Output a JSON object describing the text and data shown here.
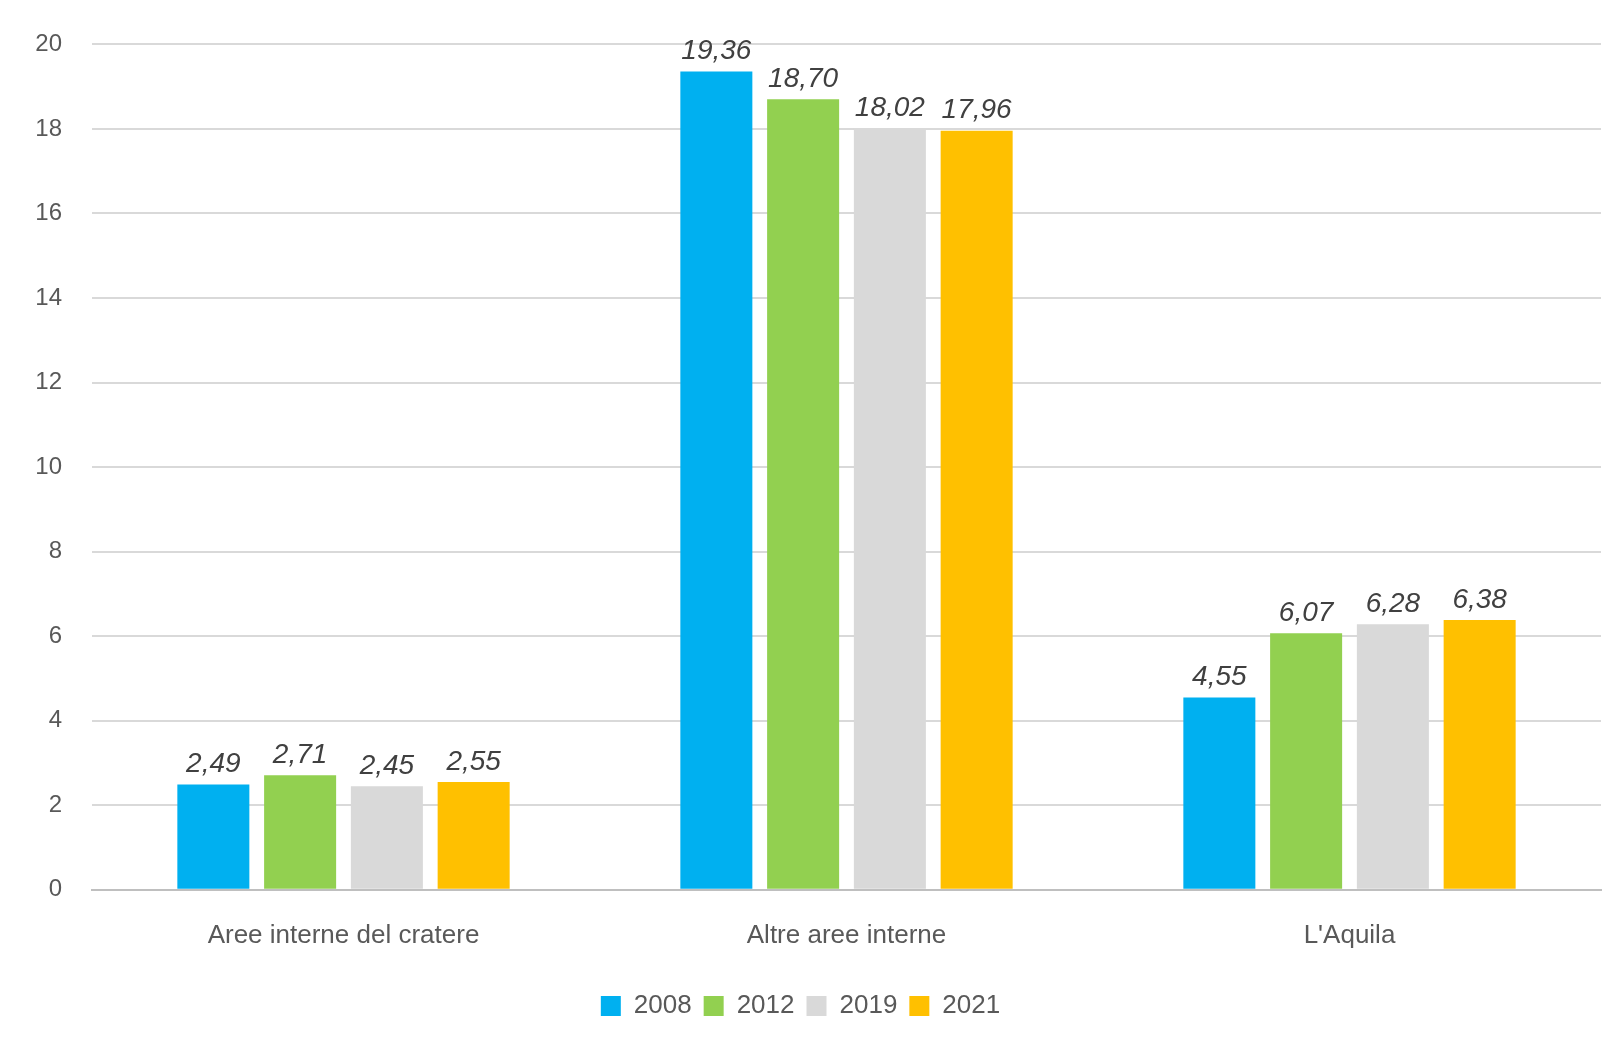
{
  "chart_data": {
    "type": "bar",
    "categories": [
      "Aree interne del cratere",
      "Altre aree interne",
      "L'Aquila"
    ],
    "series": [
      {
        "name": "2008",
        "color": "#00b0f0",
        "values": [
          2.49,
          19.36,
          4.55
        ],
        "value_labels": [
          "2,49",
          "19,36",
          "4,55"
        ]
      },
      {
        "name": "2012",
        "color": "#92d050",
        "values": [
          2.71,
          18.7,
          6.07
        ],
        "value_labels": [
          "2,71",
          "18,70",
          "6,07"
        ]
      },
      {
        "name": "2019",
        "color": "#d9d9d9",
        "values": [
          2.45,
          18.02,
          6.28
        ],
        "value_labels": [
          "2,45",
          "18,02",
          "6,28"
        ]
      },
      {
        "name": "2021",
        "color": "#ffc000",
        "values": [
          2.55,
          17.96,
          6.38
        ],
        "value_labels": [
          "2,55",
          "17,96",
          "6,38"
        ]
      }
    ],
    "ylim": [
      0,
      20
    ],
    "yticks": [
      0,
      2,
      4,
      6,
      8,
      10,
      12,
      14,
      16,
      18,
      20
    ],
    "grid": "y",
    "legend": "bottom"
  }
}
